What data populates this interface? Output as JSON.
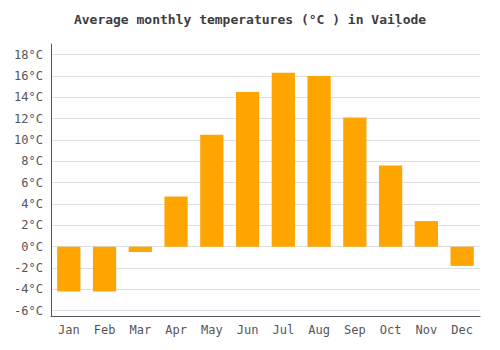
{
  "chart_data": {
    "type": "bar",
    "title": "Average monthly temperatures (°C ) in Vaiļode",
    "categories": [
      "Jan",
      "Feb",
      "Mar",
      "Apr",
      "May",
      "Jun",
      "Jul",
      "Aug",
      "Sep",
      "Oct",
      "Nov",
      "Dec"
    ],
    "values": [
      -4.2,
      -4.2,
      -0.5,
      4.7,
      10.5,
      14.5,
      16.3,
      16.0,
      12.1,
      7.6,
      2.4,
      -1.8
    ],
    "color": "#FFA500",
    "ylim": [
      -6.5,
      19
    ],
    "yticks": [
      {
        "value": -6,
        "label": "-6°C"
      },
      {
        "value": -4,
        "label": "-4°C"
      },
      {
        "value": -2,
        "label": "-2°C"
      },
      {
        "value": 0,
        "label": "0°C"
      },
      {
        "value": 2,
        "label": "2°C"
      },
      {
        "value": 4,
        "label": "4°C"
      },
      {
        "value": 6,
        "label": "6°C"
      },
      {
        "value": 8,
        "label": "8°C"
      },
      {
        "value": 10,
        "label": "10°C"
      },
      {
        "value": 12,
        "label": "12°C"
      },
      {
        "value": 14,
        "label": "14°C"
      },
      {
        "value": 16,
        "label": "16°C"
      },
      {
        "value": 18,
        "label": "18°C"
      }
    ],
    "grid": true
  }
}
